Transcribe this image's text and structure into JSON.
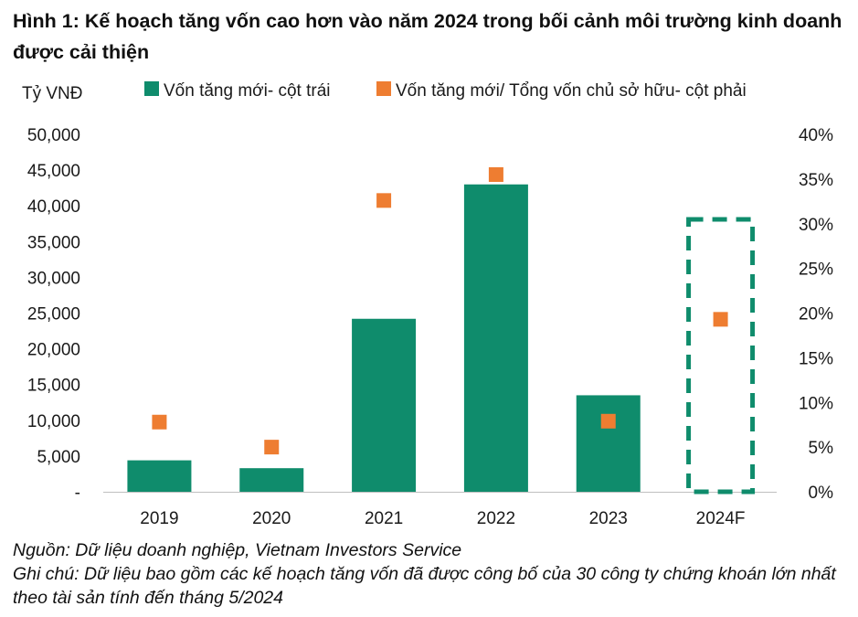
{
  "title": "Hình 1: Kế hoạch tăng vốn cao hơn vào năm 2024 trong bối cảnh môi trường kinh doanh được cải thiện",
  "source": "Nguồn: Dữ liệu doanh nghiệp, Vietnam Investors Service",
  "note": "Ghi chú: Dữ liệu bao gồm các kế hoạch tăng vốn đã được công bố của 30 công ty chứng khoán lớn nhất theo tài sản tính đến tháng 5/2024",
  "chart_data": {
    "type": "bar",
    "categories": [
      "2019",
      "2020",
      "2021",
      "2022",
      "2023",
      "2024F"
    ],
    "ylabel": "Tỷ VNĐ",
    "ylim": [
      0,
      50000
    ],
    "y_ticks": [
      "-",
      "5,000",
      "10,000",
      "15,000",
      "20,000",
      "25,000",
      "30,000",
      "35,000",
      "40,000",
      "45,000",
      "50,000"
    ],
    "y2lim": [
      0,
      0.4
    ],
    "y2_ticks": [
      "0%",
      "5%",
      "10%",
      "15%",
      "20%",
      "25%",
      "30%",
      "35%",
      "40%"
    ],
    "grid": false,
    "legend_position": "top",
    "series": [
      {
        "name": "Vốn tăng mới- cột trái",
        "type": "bar",
        "axis": "left",
        "color": "#0f8c6c",
        "values": [
          4400,
          3300,
          24200,
          43000,
          13500,
          null
        ]
      },
      {
        "name": "Vốn tăng mới/ Tổng vốn chủ sở hữu- cột phải",
        "type": "scatter",
        "axis": "right",
        "color": "#ee7d31",
        "values": [
          0.078,
          0.05,
          0.326,
          0.355,
          0.079,
          0.193
        ]
      }
    ],
    "highlight": {
      "category": "2024F",
      "style": "dashed-box",
      "color": "#0f8c6c"
    }
  }
}
